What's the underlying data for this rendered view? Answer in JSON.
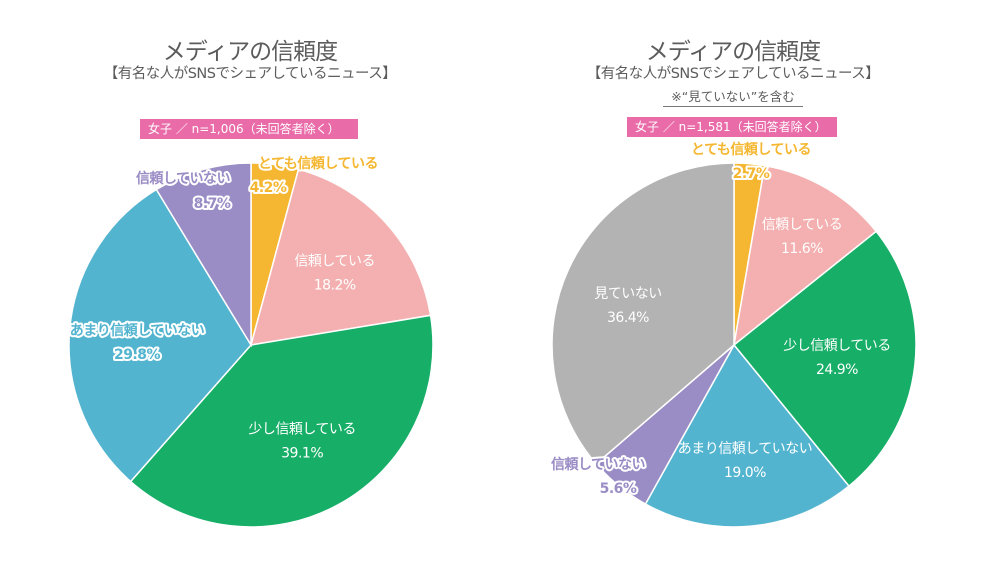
{
  "chart_data": [
    {
      "type": "pie",
      "title": "メディアの信頼度",
      "subtitle": "【有名な人がSNSでシェアしているニュース】",
      "badge": "女子 ／ n=1,006（未回答者除く）",
      "slices": [
        {
          "label": "とても信頼している",
          "value": 4.2,
          "display": "4.2%",
          "color": "#f5b731"
        },
        {
          "label": "信頼している",
          "value": 18.2,
          "display": "18.2%",
          "color": "#f4b0b0"
        },
        {
          "label": "少し信頼している",
          "value": 39.1,
          "display": "39.1%",
          "color": "#17ae67"
        },
        {
          "label": "あまり信頼していない",
          "value": 29.8,
          "display": "29.8%",
          "color": "#53b4cf"
        },
        {
          "label": "信頼していない",
          "value": 8.7,
          "display": "8.7%",
          "color": "#9a8cc5"
        }
      ]
    },
    {
      "type": "pie",
      "title": "メディアの信頼度",
      "subtitle": "【有名な人がSNSでシェアしているニュース】",
      "note": "※“見ていない”を含む",
      "badge": "女子 ／ n=1,581（未回答者除く）",
      "slices": [
        {
          "label": "とても信頼している",
          "value": 2.7,
          "display": "2.7%",
          "color": "#f5b731"
        },
        {
          "label": "信頼している",
          "value": 11.6,
          "display": "11.6%",
          "color": "#f4b0b0"
        },
        {
          "label": "少し信頼している",
          "value": 24.9,
          "display": "24.9%",
          "color": "#17ae67"
        },
        {
          "label": "あまり信頼していない",
          "value": 19.0,
          "display": "19.0%",
          "color": "#53b4cf"
        },
        {
          "label": "信頼していない",
          "value": 5.6,
          "display": "5.6%",
          "color": "#9a8cc5"
        },
        {
          "label": "見ていない",
          "value": 36.4,
          "display": "36.4%",
          "color": "#b3b3b3"
        }
      ]
    }
  ]
}
